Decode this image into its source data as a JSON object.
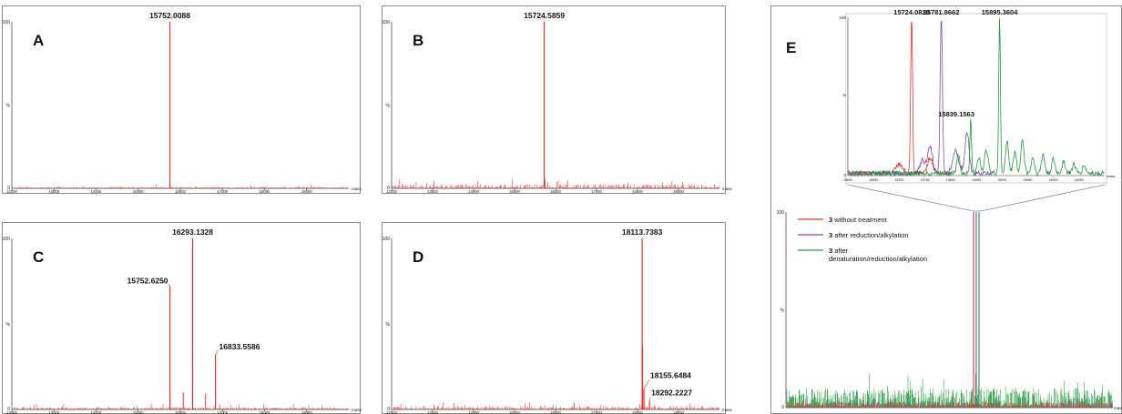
{
  "figure": {
    "panels": [
      "A",
      "B",
      "C",
      "D",
      "E"
    ]
  },
  "chart_data": [
    {
      "panel": "A",
      "type": "line",
      "xlabel": "mass",
      "y_top_label": "100",
      "y_mid_label": "%",
      "y_bottom_label": "0",
      "xlim": [
        12000,
        20000
      ],
      "xticks": [
        12000,
        13000,
        14000,
        15000,
        16000,
        17000,
        18000,
        19000
      ],
      "ylim": [
        0,
        100
      ],
      "color": "#e8322b",
      "noise_level": 1,
      "peaks": [
        {
          "x": 15752.0088,
          "y": 100,
          "label": "15752.0088"
        }
      ]
    },
    {
      "panel": "B",
      "type": "line",
      "xlabel": "mass",
      "y_top_label": "100",
      "y_mid_label": "%",
      "y_bottom_label": "0",
      "xlim": [
        12000,
        20000
      ],
      "xticks": [
        12000,
        13000,
        14000,
        15000,
        16000,
        17000,
        18000,
        19000
      ],
      "ylim": [
        0,
        100
      ],
      "color": "#e8322b",
      "noise_level": 2.5,
      "peaks": [
        {
          "x": 15724.5859,
          "y": 100,
          "label": "15724.5859"
        }
      ]
    },
    {
      "panel": "C",
      "type": "line",
      "xlabel": "mass",
      "y_top_label": "100",
      "y_mid_label": "%",
      "y_bottom_label": "0",
      "xlim": [
        12000,
        20000
      ],
      "xticks": [
        12000,
        13000,
        14000,
        15000,
        16000,
        17000,
        18000,
        19000
      ],
      "ylim": [
        0,
        100
      ],
      "color": "#e8322b",
      "noise_level": 1.5,
      "peaks": [
        {
          "x": 15752.625,
          "y": 72,
          "label": "15752.6250"
        },
        {
          "x": 16293.1328,
          "y": 100,
          "label": "16293.1328"
        },
        {
          "x": 16833.5586,
          "y": 32,
          "label": "16833.5586"
        }
      ],
      "minor_peaks": [
        {
          "x": 16070,
          "y": 10
        },
        {
          "x": 16600,
          "y": 9
        }
      ]
    },
    {
      "panel": "D",
      "type": "line",
      "xlabel": "mass",
      "y_top_label": "100",
      "y_mid_label": "%",
      "y_bottom_label": "0",
      "xlim": [
        12000,
        20000
      ],
      "xticks": [
        12000,
        13000,
        14000,
        15000,
        16000,
        17000,
        18000,
        19000
      ],
      "ylim": [
        0,
        100
      ],
      "color": "#e8322b",
      "noise_level": 2,
      "peaks": [
        {
          "x": 18113.7383,
          "y": 100,
          "label": "18113.7383"
        },
        {
          "x": 18155.6484,
          "y": 12,
          "label": "18155.6484"
        },
        {
          "x": 18292.2227,
          "y": 5,
          "label": "18292.2227"
        }
      ],
      "minor_peaks": [
        {
          "x": 18125,
          "y": 37
        },
        {
          "x": 16450,
          "y": 4
        }
      ]
    },
    {
      "panel": "E",
      "type": "line",
      "xlabel": "mass",
      "y_top_label": "100",
      "y_mid_label": "%",
      "y_bottom_label": "0",
      "xlim": [
        12000,
        20000
      ],
      "ylim": [
        0,
        100
      ],
      "legend_position": "top-left",
      "series": [
        {
          "name": "3 without treatment",
          "color": "#e8322b",
          "peaks": [
            {
              "x": 15724,
              "y": 100
            }
          ],
          "noise_level": 3
        },
        {
          "name": "3 after reduction/alkylation",
          "color": "#7b4fa8",
          "peaks": [
            {
              "x": 15781,
              "y": 100
            }
          ],
          "noise_level": 3
        },
        {
          "name": "3 after denaturation/reduction/alkylation",
          "color": "#1f9a3a",
          "peaks": [
            {
              "x": 15895,
              "y": 100
            }
          ],
          "noise_level": 10
        }
      ],
      "inset": {
        "xlim": [
          15600,
          16100
        ],
        "ylim": [
          0,
          100
        ],
        "peaks_labeled": [
          {
            "x": 15724.082,
            "y": 100,
            "label": "15724.0820",
            "color": "#e8322b"
          },
          {
            "x": 15781.8662,
            "y": 100,
            "label": "15781.8662",
            "color": "#7b4fa8"
          },
          {
            "x": 15895.3604,
            "y": 100,
            "label": "15895.3604",
            "color": "#1f9a3a"
          },
          {
            "x": 15839.1563,
            "y": 35,
            "label": "15839.1563",
            "color": "#1f9a3a"
          }
        ]
      }
    }
  ]
}
